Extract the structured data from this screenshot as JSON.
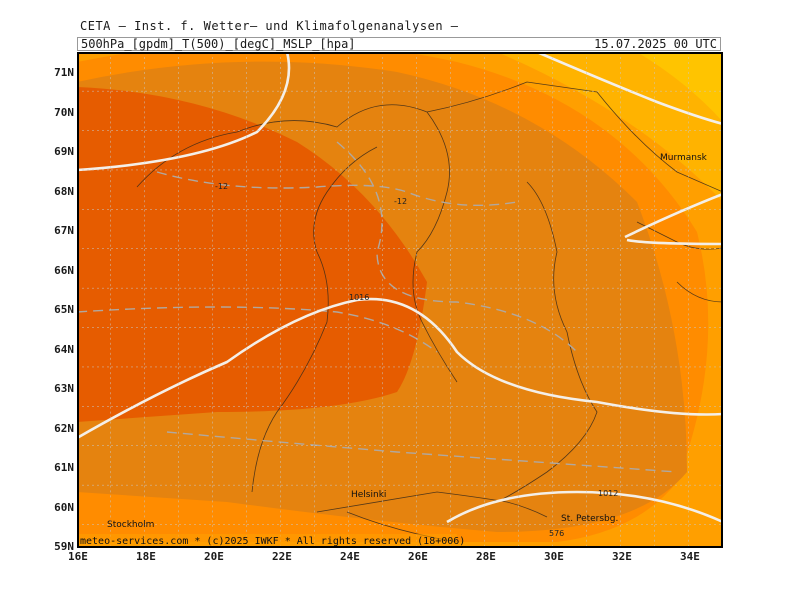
{
  "header": {
    "title": "CETA – Inst. f. Wetter– und Klimafolgenanalysen –",
    "product": "500hPa_[gpdm]_T(500)_[degC]_MSLP_[hpa]",
    "valid_time": "15.07.2025 00 UTC"
  },
  "axes": {
    "lat_labels": [
      "71N",
      "70N",
      "69N",
      "68N",
      "67N",
      "66N",
      "65N",
      "64N",
      "63N",
      "62N",
      "61N",
      "60N",
      "59N"
    ],
    "lon_labels": [
      "16E",
      "18E",
      "20E",
      "22E",
      "24E",
      "26E",
      "28E",
      "30E",
      "32E",
      "34E"
    ]
  },
  "cities": {
    "murmansk": "Murmansk",
    "helsinki": "Helsinki",
    "stockholm": "Stockholm",
    "st_petersburg": "St. Petersbg."
  },
  "isolines": {
    "temp_a": "-12",
    "temp_b": "-12",
    "pressure_a": "1016",
    "pressure_b": "1012",
    "small_red": "576"
  },
  "footer": "meteo-services.com * (c)2025 IWKF * All rights reserved (18+006)",
  "colors": {
    "outer": "#ff9f00",
    "mid": "#ff8c00",
    "inner": "#e07a10",
    "core": "#e65c00",
    "corner_yellow": "#ffc200",
    "grid": "#c8c8c8",
    "isobar": "#f2ede8",
    "temp_dash": "#b0a8a0",
    "coast": "#3a2a1a"
  }
}
